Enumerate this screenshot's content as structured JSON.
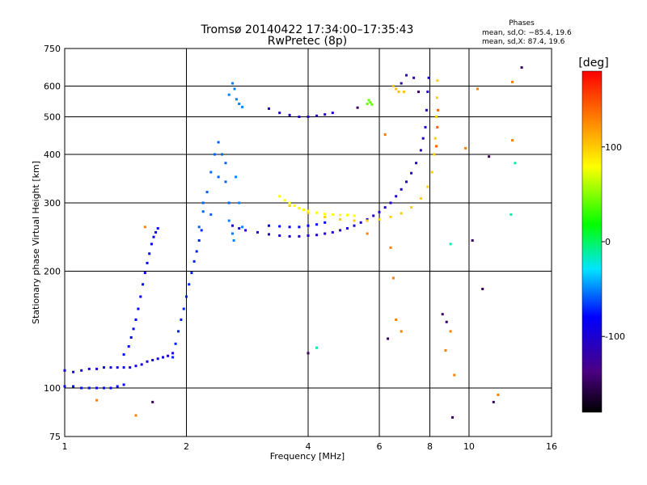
{
  "chart_data": {
    "type": "scatter",
    "title": "Tromsø 20140422 17:34:00–17:35:43",
    "subtitle": "RwPretec (8p)",
    "phase_box": {
      "heading": "Phases",
      "line1": "mean, sd,O:  −85.4, 19.6",
      "line2": "mean, sd,X:   87.4, 19.6"
    },
    "xlabel": "Frequency [MHz]",
    "ylabel": "Stationary phase Virtual Height [km]",
    "xscale": "log",
    "yscale": "log",
    "xlim": [
      1,
      16
    ],
    "ylim": [
      75,
      750
    ],
    "xticks": [
      1,
      2,
      4,
      6,
      8,
      10,
      16
    ],
    "yticks": [
      75,
      100,
      200,
      300,
      400,
      500,
      600,
      750
    ],
    "grid": true,
    "colorbar": {
      "label": "[deg]",
      "range": [
        -180,
        180
      ],
      "ticks": [
        100,
        0,
        -100
      ]
    },
    "series": [
      {
        "phase": -100,
        "points": [
          [
            1.0,
            101
          ],
          [
            1.05,
            101
          ],
          [
            1.1,
            100
          ],
          [
            1.15,
            100
          ],
          [
            1.2,
            100
          ],
          [
            1.25,
            100
          ],
          [
            1.3,
            100
          ],
          [
            1.35,
            101
          ],
          [
            1.4,
            102
          ]
        ]
      },
      {
        "phase": -110,
        "points": [
          [
            1.0,
            111
          ],
          [
            1.05,
            110
          ],
          [
            1.1,
            111
          ],
          [
            1.15,
            112
          ],
          [
            1.2,
            112
          ],
          [
            1.25,
            113
          ],
          [
            1.3,
            113
          ],
          [
            1.35,
            113
          ],
          [
            1.4,
            113
          ],
          [
            1.45,
            113
          ],
          [
            1.5,
            114
          ],
          [
            1.55,
            115
          ],
          [
            1.6,
            117
          ],
          [
            1.65,
            118
          ],
          [
            1.7,
            119
          ],
          [
            1.75,
            120
          ],
          [
            1.8,
            121
          ],
          [
            1.85,
            123
          ]
        ]
      },
      {
        "phase": -100,
        "points": [
          [
            1.4,
            122
          ],
          [
            1.44,
            128
          ],
          [
            1.46,
            135
          ],
          [
            1.48,
            142
          ],
          [
            1.5,
            150
          ],
          [
            1.52,
            160
          ],
          [
            1.54,
            172
          ],
          [
            1.56,
            185
          ],
          [
            1.58,
            198
          ],
          [
            1.6,
            210
          ],
          [
            1.62,
            222
          ],
          [
            1.64,
            235
          ],
          [
            1.66,
            245
          ],
          [
            1.68,
            252
          ],
          [
            1.7,
            258
          ]
        ]
      },
      {
        "phase": -90,
        "points": [
          [
            1.85,
            120
          ],
          [
            1.88,
            130
          ],
          [
            1.91,
            140
          ],
          [
            1.94,
            150
          ],
          [
            1.97,
            160
          ],
          [
            2.0,
            172
          ],
          [
            2.03,
            185
          ],
          [
            2.06,
            198
          ],
          [
            2.09,
            212
          ],
          [
            2.12,
            225
          ],
          [
            2.15,
            240
          ],
          [
            2.18,
            255
          ]
        ]
      },
      {
        "phase": -70,
        "points": [
          [
            2.15,
            260
          ],
          [
            2.2,
            285
          ],
          [
            2.25,
            320
          ],
          [
            2.3,
            360
          ],
          [
            2.35,
            400
          ],
          [
            2.4,
            430
          ],
          [
            2.45,
            400
          ],
          [
            2.5,
            340
          ],
          [
            2.55,
            300
          ],
          [
            2.2,
            300
          ],
          [
            2.3,
            280
          ],
          [
            2.4,
            350
          ],
          [
            2.5,
            380
          ]
        ]
      },
      {
        "phase": -60,
        "points": [
          [
            2.55,
            270
          ],
          [
            2.6,
            250
          ],
          [
            2.62,
            240
          ],
          [
            2.65,
            350
          ],
          [
            2.7,
            300
          ],
          [
            2.75,
            260
          ]
        ]
      },
      {
        "phase": -60,
        "points": [
          [
            2.55,
            570
          ],
          [
            2.6,
            610
          ],
          [
            2.63,
            590
          ],
          [
            2.66,
            555
          ],
          [
            2.7,
            540
          ],
          [
            2.75,
            530
          ]
        ]
      },
      {
        "phase": -120,
        "points": [
          [
            3.2,
            525
          ],
          [
            3.4,
            512
          ],
          [
            3.6,
            505
          ],
          [
            3.8,
            500
          ],
          [
            4.0,
            500
          ],
          [
            4.2,
            503
          ],
          [
            4.4,
            507
          ],
          [
            4.6,
            512
          ]
        ]
      },
      {
        "phase": -115,
        "points": [
          [
            2.6,
            262
          ],
          [
            2.7,
            258
          ],
          [
            2.8,
            255
          ],
          [
            3.0,
            252
          ],
          [
            3.2,
            249
          ],
          [
            3.4,
            247
          ],
          [
            3.6,
            246
          ],
          [
            3.8,
            246
          ],
          [
            4.0,
            247
          ],
          [
            4.2,
            248
          ],
          [
            4.4,
            250
          ],
          [
            4.6,
            252
          ],
          [
            4.8,
            255
          ],
          [
            5.0,
            258
          ],
          [
            5.2,
            262
          ],
          [
            5.4,
            267
          ],
          [
            5.6,
            272
          ],
          [
            5.8,
            278
          ],
          [
            6.0,
            284
          ],
          [
            6.2,
            292
          ],
          [
            6.4,
            300
          ],
          [
            6.6,
            312
          ],
          [
            6.8,
            325
          ],
          [
            7.0,
            340
          ],
          [
            7.2,
            358
          ],
          [
            7.4,
            380
          ],
          [
            7.6,
            410
          ],
          [
            7.7,
            440
          ],
          [
            7.8,
            470
          ],
          [
            7.85,
            520
          ],
          [
            7.9,
            580
          ],
          [
            7.95,
            630
          ]
        ]
      },
      {
        "phase": -100,
        "points": [
          [
            3.2,
            262
          ],
          [
            3.4,
            261
          ],
          [
            3.6,
            260
          ],
          [
            3.8,
            260
          ],
          [
            4.0,
            262
          ],
          [
            4.2,
            264
          ],
          [
            4.4,
            267
          ]
        ]
      },
      {
        "phase": 100,
        "points": [
          [
            3.4,
            312
          ],
          [
            3.5,
            305
          ],
          [
            3.6,
            300
          ],
          [
            3.7,
            295
          ],
          [
            3.8,
            291
          ],
          [
            3.9,
            288
          ],
          [
            4.0,
            286
          ],
          [
            4.2,
            283
          ],
          [
            4.4,
            281
          ],
          [
            4.6,
            280
          ],
          [
            4.8,
            279
          ],
          [
            5.0,
            279
          ],
          [
            5.2,
            278
          ]
        ]
      },
      {
        "phase": 115,
        "points": [
          [
            3.6,
            295
          ],
          [
            4.0,
            283
          ],
          [
            4.4,
            276
          ],
          [
            4.8,
            272
          ],
          [
            5.2,
            270
          ],
          [
            5.6,
            270
          ],
          [
            6.0,
            272
          ],
          [
            6.4,
            276
          ],
          [
            6.8,
            282
          ],
          [
            7.2,
            292
          ],
          [
            7.6,
            308
          ],
          [
            7.9,
            330
          ],
          [
            8.1,
            360
          ],
          [
            8.2,
            400
          ],
          [
            8.25,
            440
          ],
          [
            8.3,
            500
          ],
          [
            8.33,
            560
          ],
          [
            8.35,
            620
          ]
        ]
      },
      {
        "phase": 150,
        "points": [
          [
            8.3,
            420
          ],
          [
            8.35,
            470
          ],
          [
            8.38,
            520
          ]
        ]
      },
      {
        "phase": 40,
        "points": [
          [
            5.6,
            540
          ],
          [
            5.65,
            552
          ],
          [
            5.7,
            545
          ],
          [
            5.75,
            538
          ]
        ]
      },
      {
        "phase": 120,
        "points": [
          [
            6.5,
            600
          ],
          [
            6.6,
            590
          ],
          [
            6.7,
            580
          ],
          [
            6.9,
            580
          ]
        ]
      },
      {
        "phase": -130,
        "points": [
          [
            6.8,
            610
          ],
          [
            7.0,
            640
          ],
          [
            7.3,
            630
          ]
        ]
      },
      {
        "phase": 140,
        "points": [
          [
            1.2,
            93
          ],
          [
            1.5,
            85
          ],
          [
            1.58,
            260
          ],
          [
            5.6,
            250
          ],
          [
            6.2,
            450
          ],
          [
            6.4,
            230
          ],
          [
            6.5,
            192
          ],
          [
            6.6,
            150
          ],
          [
            6.8,
            140
          ],
          [
            9.0,
            140
          ],
          [
            9.2,
            108
          ],
          [
            9.8,
            415
          ],
          [
            11.8,
            96
          ],
          [
            12.8,
            615
          ],
          [
            12.8,
            435
          ],
          [
            10.5,
            590
          ],
          [
            8.75,
            125
          ]
        ]
      },
      {
        "phase": -150,
        "points": [
          [
            1.65,
            92
          ],
          [
            6.3,
            134
          ],
          [
            7.5,
            580
          ],
          [
            8.6,
            155
          ],
          [
            8.8,
            148
          ],
          [
            9.1,
            84
          ],
          [
            10.8,
            180
          ],
          [
            11.2,
            395
          ],
          [
            11.5,
            92
          ],
          [
            13.5,
            670
          ],
          [
            5.3,
            528
          ],
          [
            4.0,
            123
          ],
          [
            10.2,
            240
          ]
        ]
      },
      {
        "phase": -20,
        "points": [
          [
            12.7,
            280
          ],
          [
            13.0,
            380
          ],
          [
            9.0,
            235
          ],
          [
            4.2,
            127
          ]
        ]
      }
    ]
  }
}
